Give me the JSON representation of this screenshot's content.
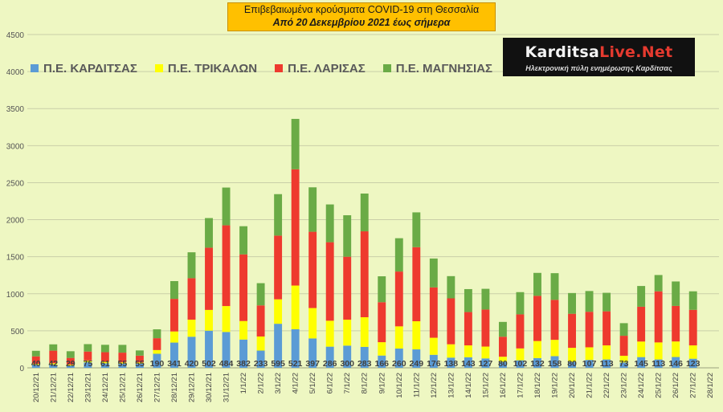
{
  "title": {
    "line1": "Επιβεβαιωμένα κρούσματα COVID-19 στη Θεσσαλία",
    "line2": "Από 20 Δεκεμβρίου 2021 έως σήμερα"
  },
  "logo": {
    "brand_part1": "Karditsa",
    "brand_part2": "Live.Net",
    "tagline": "Ηλεκτρονική πύλη ενημέρωσης Καρδίτσας"
  },
  "colors": {
    "karditsa": "#5b9bd5",
    "trikala": "#ffff00",
    "larisa": "#ee3a2e",
    "magnisia": "#6aab46",
    "background": "#eef7c2",
    "grid": "#c9cfa8"
  },
  "chart_data": {
    "type": "bar",
    "stacked": true,
    "title": "Επιβεβαιωμένα κρούσματα COVID-19 στη Θεσσαλία",
    "subtitle": "Από 20 Δεκεμβρίου 2021 έως σήμερα",
    "ylim": [
      0,
      4500
    ],
    "yticks": [
      0,
      500,
      1000,
      1500,
      2000,
      2500,
      3000,
      3500,
      4000,
      4500
    ],
    "grid": true,
    "legend_position": "top-left",
    "categories": [
      "20/12/21",
      "21/12/21",
      "22/12/21",
      "23/12/21",
      "24/12/21",
      "25/12/21",
      "26/12/21",
      "27/12/21",
      "28/12/21",
      "29/12/21",
      "30/12/21",
      "31/12/21",
      "1/1/22",
      "2/1/22",
      "3/1/22",
      "4/1/22",
      "5/1/22",
      "6/1/22",
      "7/1/22",
      "8/1/22",
      "9/1/22",
      "10/1/22",
      "11/1/22",
      "12/1/22",
      "13/1/22",
      "14/1/22",
      "15/1/22",
      "16/1/22",
      "17/1/22",
      "18/1/22",
      "19/1/22",
      "20/1/22",
      "21/1/22",
      "22/1/22",
      "23/1/22",
      "24/1/22",
      "25/1/22",
      "26/1/22",
      "27/1/22",
      "28/1/22"
    ],
    "series": [
      {
        "name": "Π.Ε. ΚΑΡΔΙΤΣΑΣ",
        "color_key": "karditsa",
        "labeled": true,
        "values": [
          40,
          42,
          29,
          75,
          61,
          55,
          55,
          190,
          341,
          420,
          502,
          484,
          382,
          233,
          595,
          521,
          397,
          286,
          300,
          283,
          166,
          260,
          249,
          176,
          138,
          143,
          127,
          80,
          102,
          132,
          158,
          80,
          107,
          113,
          73,
          145,
          113,
          146,
          123,
          null
        ]
      },
      {
        "name": "Π.Ε. ΤΡΙΚΑΛΩΝ",
        "color_key": "trikala",
        "values": [
          15,
          20,
          15,
          25,
          20,
          20,
          20,
          50,
          150,
          230,
          280,
          350,
          250,
          190,
          330,
          590,
          410,
          350,
          350,
          400,
          180,
          300,
          380,
          230,
          180,
          160,
          160,
          70,
          160,
          230,
          220,
          190,
          170,
          190,
          90,
          210,
          230,
          210,
          180,
          null
        ]
      },
      {
        "name": "Π.Ε. ΛΑΡΙΣΑΣ",
        "color_key": "larisa",
        "values": [
          100,
          170,
          90,
          120,
          130,
          130,
          90,
          160,
          440,
          560,
          840,
          1090,
          900,
          420,
          860,
          1570,
          1030,
          1060,
          850,
          1160,
          540,
          740,
          1000,
          680,
          620,
          450,
          500,
          270,
          460,
          610,
          540,
          460,
          480,
          460,
          270,
          470,
          690,
          480,
          480,
          null
        ]
      },
      {
        "name": "Π.Ε. ΜΑΓΝΗΣΙΑΣ",
        "color_key": "magnisia",
        "values": [
          75,
          85,
          90,
          100,
          100,
          105,
          70,
          120,
          240,
          350,
          400,
          510,
          380,
          300,
          560,
          680,
          600,
          510,
          560,
          510,
          350,
          450,
          470,
          390,
          300,
          310,
          280,
          200,
          300,
          310,
          360,
          280,
          280,
          250,
          170,
          280,
          220,
          330,
          250,
          null
        ]
      }
    ]
  }
}
